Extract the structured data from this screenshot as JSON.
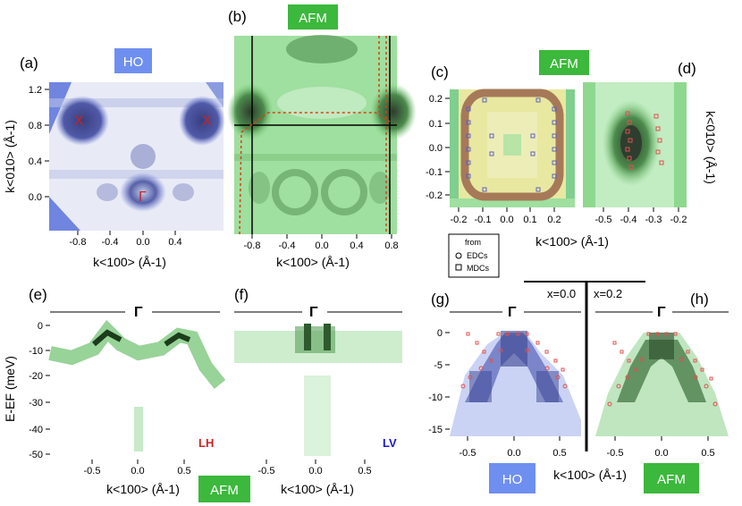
{
  "badges": {
    "ho_top": "HO",
    "afm_b": "AFM",
    "afm_c": "AFM",
    "afm_bottom": "AFM",
    "ho_bottom": "HO",
    "afm_h": "AFM"
  },
  "labels": {
    "a": "(a)",
    "b": "(b)",
    "c": "(c)",
    "d": "(d)",
    "e": "(e)",
    "f": "(f)",
    "g": "(g)",
    "h": "(h)"
  },
  "axes": {
    "kx": "k<100> (Å-1)",
    "ky": "k<010> (Å-1)",
    "energy": "E-EF (meV)",
    "ky_c": "k<010> (Å-1)"
  },
  "symbols": {
    "X": "X",
    "Gamma": "Γ"
  },
  "legend": {
    "title": "from",
    "edc": "EDCs",
    "mdc": "MDCs"
  },
  "polarization": {
    "lh": "LH",
    "lv": "LV"
  },
  "doping": {
    "x0": "x=0.0",
    "x02": "x=0.2"
  },
  "ticks": {
    "a_y": [
      "1.2",
      "0.8",
      "0.4",
      "0.0"
    ],
    "a_x": [
      "-0.8",
      "-0.4",
      "0.0",
      "0.4"
    ],
    "b_x": [
      "-0.8",
      "-0.4",
      "0.0",
      "0.4",
      "0.8"
    ],
    "c_y": [
      "0.2",
      "0.1",
      "0.0",
      "-0.1",
      "-0.2"
    ],
    "c_x": [
      "-0.2",
      "-0.1",
      "0.0",
      "0.1",
      "0.2"
    ],
    "d_x": [
      "-0.5",
      "-0.4",
      "-0.3",
      "-0.2"
    ],
    "e_y": [
      "0",
      "-10",
      "-20",
      "-30",
      "-40",
      "-50"
    ],
    "e_x": [
      "-0.5",
      "0.0",
      "0.5"
    ],
    "f_x": [
      "-0.5",
      "0.0",
      "0.5"
    ],
    "g_y": [
      "0",
      "-5",
      "-10",
      "-15"
    ],
    "g_x": [
      "-0.5",
      "0.0",
      "0.5"
    ],
    "h_x": [
      "-0.5",
      "0.0",
      "0.5"
    ]
  },
  "colors": {
    "ho_blue": "#6f8ff0",
    "afm_green": "#3cb83c",
    "marker_red": "#e05050",
    "tick_red": "#cc2222",
    "lv_blue": "#1a1ad0"
  }
}
